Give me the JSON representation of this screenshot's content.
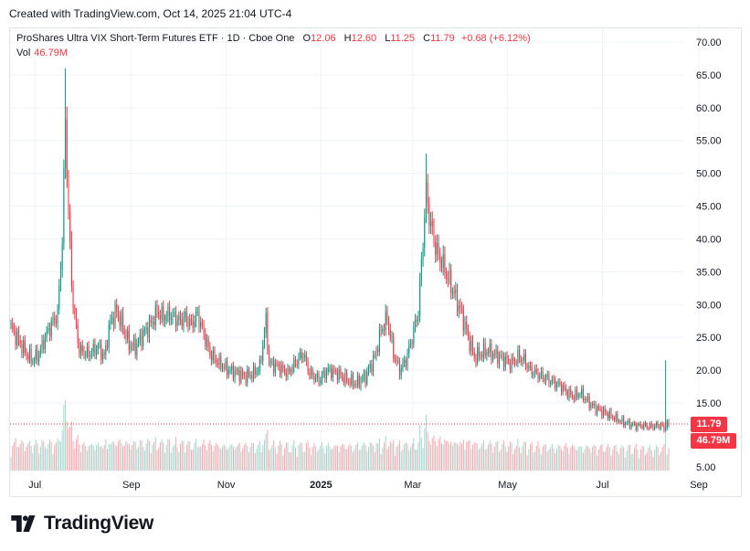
{
  "caption": "Created with TradingView.com, Oct 14, 2025 21:04 UTC-4",
  "legend": {
    "symbol": "ProShares Ultra VIX Short-Term Futures ETF · 1D · Cboe One",
    "open_label": "O",
    "open_value": "12.06",
    "high_label": "H",
    "high_value": "12.60",
    "low_label": "L",
    "low_value": "11.25",
    "close_label": "C",
    "close_value": "11.79",
    "change": "+0.68 (+6.12%)",
    "vol_label": "Vol",
    "vol_value": "46.79M"
  },
  "badges": {
    "price": "11.79",
    "volume": "46.79M"
  },
  "brand": {
    "name": "TradingView"
  },
  "colors": {
    "up": "#089981",
    "down": "#f23645",
    "up_vol": "#a3d9cf",
    "down_vol": "#f7a9b0",
    "grid": "#f0f3fa"
  },
  "chart_data": {
    "type": "candlestick",
    "title": "ProShares Ultra VIX Short-Term Futures ETF · 1D · Cboe One",
    "yticks": [
      "70.00",
      "65.00",
      "60.00",
      "55.00",
      "50.00",
      "45.00",
      "40.00",
      "35.00",
      "30.00",
      "25.00",
      "20.00",
      "15.00",
      "5.00"
    ],
    "ylim": [
      5,
      72
    ],
    "xticks": [
      {
        "label": "Jul",
        "bold": false,
        "day": 6
      },
      {
        "label": "Sep",
        "bold": false,
        "day": 68
      },
      {
        "label": "Nov",
        "bold": false,
        "day": 129
      },
      {
        "label": "2025",
        "bold": true,
        "day": 190
      },
      {
        "label": "Mar",
        "bold": false,
        "day": 249
      },
      {
        "label": "May",
        "bold": false,
        "day": 310
      },
      {
        "label": "Jul",
        "bold": false,
        "day": 371
      },
      {
        "label": "Sep",
        "bold": false,
        "day": 433
      }
    ],
    "close_anchors": [
      [
        0,
        26.5
      ],
      [
        6,
        24.0
      ],
      [
        10,
        22.5
      ],
      [
        14,
        21.5
      ],
      [
        18,
        22.5
      ],
      [
        22,
        25.0
      ],
      [
        26,
        27.0
      ],
      [
        30,
        28.5
      ],
      [
        33,
        40.0
      ],
      [
        35,
        58.0
      ],
      [
        37,
        44.0
      ],
      [
        39,
        33.0
      ],
      [
        41,
        28.0
      ],
      [
        44,
        23.0
      ],
      [
        50,
        22.5
      ],
      [
        56,
        23.5
      ],
      [
        60,
        22.0
      ],
      [
        64,
        27.5
      ],
      [
        68,
        29.0
      ],
      [
        72,
        26.5
      ],
      [
        76,
        24.0
      ],
      [
        80,
        23.5
      ],
      [
        85,
        25.5
      ],
      [
        90,
        27.0
      ],
      [
        94,
        29.0
      ],
      [
        98,
        28.0
      ],
      [
        102,
        28.5
      ],
      [
        108,
        27.5
      ],
      [
        112,
        28.0
      ],
      [
        116,
        27.0
      ],
      [
        120,
        28.5
      ],
      [
        124,
        25.5
      ],
      [
        128,
        22.5
      ],
      [
        134,
        21.0
      ],
      [
        140,
        20.0
      ],
      [
        146,
        19.5
      ],
      [
        150,
        19.0
      ],
      [
        156,
        19.5
      ],
      [
        160,
        20.5
      ],
      [
        164,
        27.5
      ],
      [
        166,
        21.0
      ],
      [
        172,
        20.5
      ],
      [
        178,
        19.5
      ],
      [
        184,
        21.5
      ],
      [
        188,
        22.5
      ],
      [
        192,
        19.5
      ],
      [
        198,
        18.5
      ],
      [
        204,
        20.0
      ],
      [
        210,
        19.5
      ],
      [
        216,
        18.5
      ],
      [
        222,
        18.0
      ],
      [
        228,
        19.0
      ],
      [
        234,
        22.0
      ],
      [
        238,
        26.0
      ],
      [
        242,
        28.0
      ],
      [
        246,
        22.5
      ],
      [
        250,
        20.0
      ],
      [
        254,
        21.5
      ],
      [
        258,
        25.0
      ],
      [
        262,
        29.0
      ],
      [
        265,
        40.0
      ],
      [
        267,
        47.0
      ],
      [
        270,
        42.0
      ],
      [
        274,
        38.0
      ],
      [
        278,
        36.0
      ],
      [
        282,
        33.5
      ],
      [
        286,
        31.0
      ],
      [
        290,
        28.5
      ],
      [
        294,
        25.0
      ],
      [
        298,
        22.0
      ],
      [
        302,
        22.5
      ],
      [
        306,
        23.0
      ],
      [
        310,
        22.5
      ],
      [
        314,
        22.0
      ],
      [
        318,
        21.5
      ],
      [
        322,
        21.0
      ],
      [
        326,
        22.0
      ],
      [
        330,
        21.5
      ],
      [
        334,
        20.0
      ],
      [
        338,
        19.5
      ],
      [
        342,
        19.0
      ],
      [
        346,
        18.5
      ],
      [
        350,
        18.0
      ],
      [
        354,
        17.5
      ],
      [
        358,
        16.5
      ],
      [
        362,
        16.0
      ],
      [
        366,
        16.5
      ],
      [
        370,
        15.5
      ],
      [
        374,
        14.5
      ],
      [
        378,
        14.0
      ],
      [
        382,
        13.5
      ],
      [
        386,
        13.0
      ],
      [
        390,
        12.5
      ],
      [
        394,
        12.0
      ],
      [
        398,
        11.8
      ],
      [
        402,
        11.5
      ],
      [
        406,
        11.6
      ],
      [
        410,
        11.4
      ],
      [
        414,
        11.5
      ],
      [
        418,
        11.6
      ],
      [
        420,
        11.1
      ],
      [
        422,
        11.79
      ]
    ],
    "spikes": [
      {
        "day": 35,
        "high": 66.0
      },
      {
        "day": 36,
        "high": 55.0
      },
      {
        "day": 267,
        "high": 53.0
      },
      {
        "day": 164,
        "high": 29.5
      },
      {
        "day": 421,
        "high": 21.5
      }
    ],
    "last": {
      "open": 12.06,
      "high": 12.6,
      "low": 11.25,
      "close": 11.79,
      "volume": "46.79M"
    }
  }
}
